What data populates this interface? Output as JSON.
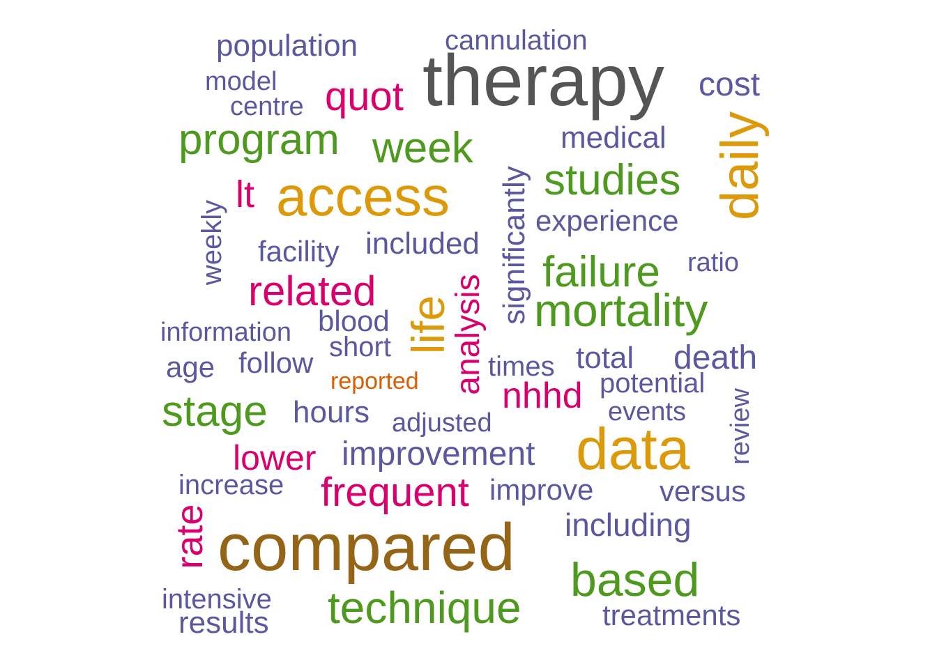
{
  "colors": {
    "gray": "#555555",
    "purple": "#5B58A0",
    "magenta": "#D9006E",
    "green": "#4E9A1E",
    "gold": "#DC9A0A",
    "brown": "#946417",
    "orange": "#D95F02"
  },
  "words": {
    "therapy": "therapy",
    "compared": "compared",
    "data": "data",
    "access": "access",
    "daily": "daily",
    "life": "life",
    "mortality": "mortality",
    "technique": "technique",
    "based": "based",
    "studies": "studies",
    "program": "program",
    "week": "week",
    "failure": "failure",
    "stage": "stage",
    "related": "related",
    "frequent": "frequent",
    "quot": "quot",
    "nhhd": "nhhd",
    "lower": "lower",
    "lt": "lt",
    "rate": "rate",
    "analysis": "analysis",
    "significantly": "significantly",
    "population": "population",
    "cannulation": "cannulation",
    "model": "model",
    "centre": "centre",
    "cost": "cost",
    "medical": "medical",
    "experience": "experience",
    "weekly": "weekly",
    "facility": "facility",
    "included": "included",
    "ratio": "ratio",
    "information": "information",
    "blood": "blood",
    "short": "short",
    "age": "age",
    "follow": "follow",
    "reported": "reported",
    "times": "times",
    "total": "total",
    "death": "death",
    "potential": "potential",
    "events": "events",
    "review": "review",
    "hours": "hours",
    "adjusted": "adjusted",
    "improvement": "improvement",
    "increase": "increase",
    "improve": "improve",
    "versus": "versus",
    "including": "including",
    "intensive": "intensive",
    "results": "results",
    "treatments": "treatments"
  }
}
